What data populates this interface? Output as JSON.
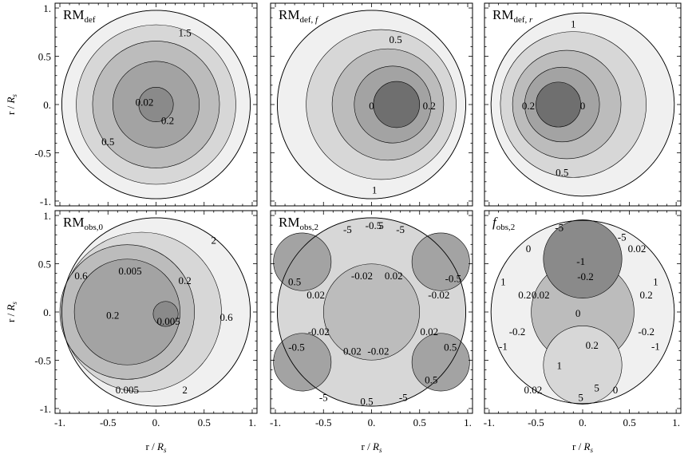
{
  "colors": {
    "c0": "#f0f0f0",
    "c1": "#d7d7d7",
    "c2": "#bcbcbc",
    "c3": "#a3a3a3",
    "c4": "#8a8a8a",
    "c5": "#6f6f6f",
    "frame": "#000000"
  },
  "chart_data": [
    {
      "type": "contour",
      "title_main": "RM",
      "title_sub": "def",
      "title_italic": "",
      "xlim": [
        -1.05,
        1.05
      ],
      "ylim": [
        -1.05,
        1.05
      ],
      "xticks": [],
      "yticks": [
        "1.",
        "0.5",
        "0.",
        "-0.5",
        "-1."
      ],
      "ylabel_r": "r /",
      "ylabel_R": "R",
      "ylabel_s": "s",
      "levels": [
        {
          "cx": 0.0,
          "cy": 0.0,
          "r": 0.98,
          "fill": "c0"
        },
        {
          "cx": 0.0,
          "cy": 0.0,
          "r": 0.83,
          "fill": "c1"
        },
        {
          "cx": 0.0,
          "cy": 0.0,
          "r": 0.66,
          "fill": "c2"
        },
        {
          "cx": 0.0,
          "cy": 0.0,
          "r": 0.45,
          "fill": "c3"
        },
        {
          "cx": 0.0,
          "cy": 0.0,
          "r": 0.18,
          "fill": "c4"
        }
      ],
      "annotations": [
        {
          "text": "1.5",
          "x": 0.3,
          "y": 0.75
        },
        {
          "text": "0.02",
          "x": -0.12,
          "y": 0.03
        },
        {
          "text": "0.2",
          "x": 0.12,
          "y": -0.16
        },
        {
          "text": "0.5",
          "x": -0.5,
          "y": -0.38
        }
      ]
    },
    {
      "type": "contour",
      "title_main": "RM",
      "title_sub": "def,",
      "title_italic": "f",
      "xlim": [
        -1.05,
        1.05
      ],
      "ylim": [
        -1.05,
        1.05
      ],
      "xticks": [],
      "yticks": [],
      "levels": [
        {
          "cx": 0.0,
          "cy": 0.0,
          "r": 0.98,
          "fill": "c0"
        },
        {
          "cx": 0.1,
          "cy": 0.0,
          "r": 0.78,
          "fill": "c1"
        },
        {
          "cx": 0.17,
          "cy": 0.0,
          "r": 0.58,
          "fill": "c2"
        },
        {
          "cx": 0.22,
          "cy": 0.0,
          "r": 0.4,
          "fill": "c3"
        },
        {
          "cx": 0.26,
          "cy": 0.0,
          "r": 0.24,
          "fill": "c5"
        }
      ],
      "annotations": [
        {
          "text": "0.5",
          "x": 0.25,
          "y": 0.68
        },
        {
          "text": "0",
          "x": 0.0,
          "y": -0.01
        },
        {
          "text": "0.2",
          "x": 0.6,
          "y": -0.01
        },
        {
          "text": "1",
          "x": 0.03,
          "y": -0.88
        }
      ]
    },
    {
      "type": "contour",
      "title_main": "RM",
      "title_sub": "def,",
      "title_italic": "r",
      "xlim": [
        -1.05,
        1.05
      ],
      "ylim": [
        -1.05,
        1.05
      ],
      "xticks": [],
      "yticks": [],
      "levels": [
        {
          "cx": 0.0,
          "cy": 0.0,
          "r": 0.98,
          "fill": "c0"
        },
        {
          "cx": -0.1,
          "cy": 0.0,
          "r": 0.78,
          "fill": "c1"
        },
        {
          "cx": -0.17,
          "cy": 0.0,
          "r": 0.58,
          "fill": "c2"
        },
        {
          "cx": -0.22,
          "cy": 0.0,
          "r": 0.4,
          "fill": "c3"
        },
        {
          "cx": -0.26,
          "cy": 0.0,
          "r": 0.24,
          "fill": "c5"
        }
      ],
      "annotations": [
        {
          "text": "1",
          "x": -0.1,
          "y": 0.84
        },
        {
          "text": "0.2",
          "x": -0.58,
          "y": -0.01
        },
        {
          "text": "0",
          "x": 0.0,
          "y": -0.01
        },
        {
          "text": "0.5",
          "x": -0.22,
          "y": -0.7
        }
      ]
    },
    {
      "type": "contour",
      "title_main": "RM",
      "title_sub": "obs,0",
      "title_italic": "",
      "xlim": [
        -1.05,
        1.05
      ],
      "ylim": [
        -1.05,
        1.05
      ],
      "xticks": [
        "-1.",
        "-0.5",
        "0.",
        "0.5",
        "1."
      ],
      "yticks": [
        "1.",
        "0.5",
        "0.",
        "-0.5",
        "-1."
      ],
      "xlabel_r": "r /",
      "xlabel_R": "R",
      "xlabel_s": "s",
      "ylabel_r": "r /",
      "ylabel_R": "R",
      "ylabel_s": "s",
      "levels": [
        {
          "cx": 0.0,
          "cy": 0.0,
          "r": 0.98,
          "fill": "c0"
        },
        {
          "cx": -0.15,
          "cy": 0.0,
          "r": 0.83,
          "fill": "c1"
        },
        {
          "cx": -0.3,
          "cy": 0.0,
          "r": 0.7,
          "fill": "c2"
        },
        {
          "cx": -0.3,
          "cy": 0.0,
          "r": 0.55,
          "fill": "c3"
        },
        {
          "cx": 0.1,
          "cy": -0.02,
          "r": 0.13,
          "fill": "c4"
        }
      ],
      "annotations": [
        {
          "text": "2",
          "x": 0.6,
          "y": 0.75
        },
        {
          "text": "0.6",
          "x": -0.78,
          "y": 0.38
        },
        {
          "text": "0.005",
          "x": -0.27,
          "y": 0.43
        },
        {
          "text": "0.2",
          "x": 0.3,
          "y": 0.33
        },
        {
          "text": "0.2",
          "x": -0.45,
          "y": -0.03
        },
        {
          "text": "0.005",
          "x": 0.13,
          "y": -0.09
        },
        {
          "text": "0.6",
          "x": 0.73,
          "y": -0.05
        },
        {
          "text": "0.005",
          "x": -0.3,
          "y": -0.8
        },
        {
          "text": "2",
          "x": 0.3,
          "y": -0.8
        }
      ]
    },
    {
      "type": "contour",
      "title_main": "RM",
      "title_sub": "obs,2",
      "title_italic": "",
      "xlim": [
        -1.05,
        1.05
      ],
      "ylim": [
        -1.05,
        1.05
      ],
      "xticks": [
        "-1.",
        "-0.5",
        "0.",
        "0.5",
        "1."
      ],
      "yticks": [],
      "xlabel_r": "r /",
      "xlabel_R": "R",
      "xlabel_s": "s",
      "levels": [
        {
          "cx": 0.0,
          "cy": 0.0,
          "r": 0.98,
          "fill": "c1"
        },
        {
          "cx": -0.72,
          "cy": 0.52,
          "r": 0.3,
          "fill": "c3"
        },
        {
          "cx": 0.72,
          "cy": 0.52,
          "r": 0.3,
          "fill": "c3"
        },
        {
          "cx": -0.72,
          "cy": -0.52,
          "r": 0.3,
          "fill": "c3"
        },
        {
          "cx": 0.72,
          "cy": -0.52,
          "r": 0.3,
          "fill": "c3"
        },
        {
          "cx": 0.0,
          "cy": 0.0,
          "r": 0.5,
          "fill": "c2"
        }
      ],
      "annotations": [
        {
          "text": "-5",
          "x": -0.25,
          "y": 0.86
        },
        {
          "text": "-0.5",
          "x": 0.02,
          "y": 0.9
        },
        {
          "text": "5",
          "x": 0.1,
          "y": 0.9
        },
        {
          "text": "-5",
          "x": 0.3,
          "y": 0.86
        },
        {
          "text": "0.5",
          "x": -0.8,
          "y": 0.32
        },
        {
          "text": "-0.02",
          "x": -0.1,
          "y": 0.38
        },
        {
          "text": "0.02",
          "x": 0.23,
          "y": 0.38
        },
        {
          "text": "-0.5",
          "x": 0.85,
          "y": 0.35
        },
        {
          "text": "0.02",
          "x": -0.58,
          "y": 0.18
        },
        {
          "text": "-0.02",
          "x": 0.7,
          "y": 0.18
        },
        {
          "text": "-0.02",
          "x": -0.55,
          "y": -0.2
        },
        {
          "text": "0.02",
          "x": 0.6,
          "y": -0.2
        },
        {
          "text": "-0.5",
          "x": -0.78,
          "y": -0.36
        },
        {
          "text": "0.5",
          "x": 0.82,
          "y": -0.36
        },
        {
          "text": "0.02",
          "x": -0.2,
          "y": -0.4
        },
        {
          "text": "-0.02",
          "x": 0.07,
          "y": -0.4
        },
        {
          "text": "0.5",
          "x": 0.62,
          "y": -0.7
        },
        {
          "text": "-5",
          "x": -0.5,
          "y": -0.88
        },
        {
          "text": "0.5",
          "x": -0.05,
          "y": -0.92
        },
        {
          "text": "-5",
          "x": 0.33,
          "y": -0.88
        }
      ]
    },
    {
      "type": "contour",
      "title_main": "",
      "title_sub": "obs,2",
      "title_italic": "f",
      "xlim": [
        -1.05,
        1.05
      ],
      "ylim": [
        -1.05,
        1.05
      ],
      "xticks": [
        "-1.",
        "-0.5",
        "0.",
        "0.5",
        "1."
      ],
      "yticks": [],
      "xlabel_r": "r /",
      "xlabel_R": "R",
      "xlabel_s": "s",
      "levels": [
        {
          "cx": 0.0,
          "cy": 0.0,
          "r": 0.98,
          "fill": "c0"
        },
        {
          "cx": 0.0,
          "cy": 0.0,
          "r": 0.55,
          "fill": "c2"
        },
        {
          "cx": 0.0,
          "cy": 0.55,
          "r": 0.42,
          "fill": "c4"
        },
        {
          "cx": 0.0,
          "cy": -0.55,
          "r": 0.42,
          "fill": "c1"
        }
      ],
      "annotations": [
        {
          "text": "-5",
          "x": -0.25,
          "y": 0.88
        },
        {
          "text": "-5",
          "x": 0.42,
          "y": 0.78
        },
        {
          "text": "0",
          "x": -0.58,
          "y": 0.66
        },
        {
          "text": "-1",
          "x": -0.02,
          "y": 0.53
        },
        {
          "text": "0.02",
          "x": 0.58,
          "y": 0.66
        },
        {
          "text": "1",
          "x": -0.85,
          "y": 0.32
        },
        {
          "text": "-0.2",
          "x": 0.03,
          "y": 0.37
        },
        {
          "text": "1",
          "x": 0.78,
          "y": 0.32
        },
        {
          "text": "0.2",
          "x": -0.62,
          "y": 0.18
        },
        {
          "text": "0.02",
          "x": -0.45,
          "y": 0.18
        },
        {
          "text": "0.2",
          "x": 0.68,
          "y": 0.18
        },
        {
          "text": "0",
          "x": -0.05,
          "y": -0.01
        },
        {
          "text": "-0.2",
          "x": -0.7,
          "y": -0.2
        },
        {
          "text": "-0.2",
          "x": 0.68,
          "y": -0.2
        },
        {
          "text": "-1",
          "x": -0.85,
          "y": -0.35
        },
        {
          "text": "-1",
          "x": 0.78,
          "y": -0.35
        },
        {
          "text": "0.2",
          "x": 0.1,
          "y": -0.34
        },
        {
          "text": "1",
          "x": -0.25,
          "y": -0.55
        },
        {
          "text": "0.02",
          "x": -0.53,
          "y": -0.8
        },
        {
          "text": "0",
          "x": 0.35,
          "y": -0.8
        },
        {
          "text": "5",
          "x": 0.15,
          "y": -0.78
        },
        {
          "text": "5",
          "x": -0.02,
          "y": -0.88
        }
      ]
    }
  ]
}
